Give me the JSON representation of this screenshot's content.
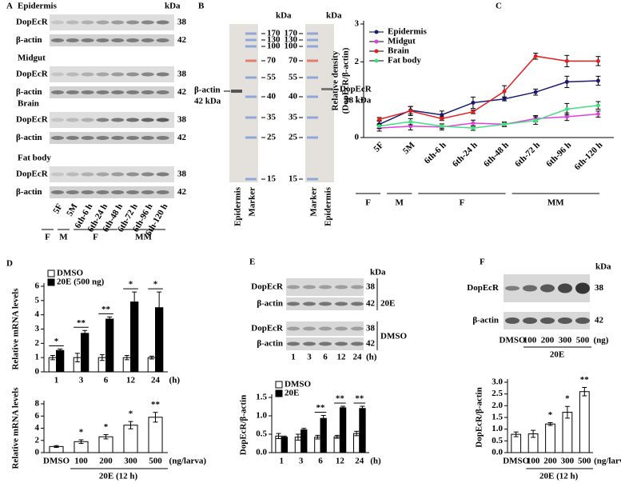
{
  "figure": {
    "panels": [
      "A",
      "B",
      "C",
      "D",
      "E",
      "F"
    ],
    "A": {
      "tissues": [
        "Epidermis",
        "Midgut",
        "Brain",
        "Fat body"
      ],
      "rows": [
        "DopEcR",
        "β-actin"
      ],
      "sizes": [
        38,
        42
      ],
      "unit": "kDa",
      "lanes": [
        "5F",
        "5M",
        "6th-6 h",
        "6th-24 h",
        "6th-48 h",
        "6th-72 h",
        "6th-96 h",
        "6th-120 h"
      ],
      "groups": [
        "F",
        "M",
        "F",
        "MM"
      ]
    },
    "B": {
      "unit": "kDa",
      "markers": [
        170,
        130,
        100,
        70,
        55,
        40,
        35,
        25,
        15
      ],
      "left_label": [
        "β-actin",
        "42 kDa"
      ],
      "right_label": [
        "DopEcR",
        "38 kDa"
      ],
      "lanes": [
        "Epidermis",
        "Marker",
        "Marker",
        "Epidermis"
      ]
    },
    "E": {
      "rows": [
        "DopEcR",
        "β-actin"
      ],
      "sizes": [
        38,
        42
      ],
      "unit": "kDa",
      "treatments": [
        "20E",
        "DMSO"
      ],
      "lanes": [
        1,
        3,
        6,
        12,
        24
      ],
      "lane_unit": "(h)"
    },
    "F": {
      "rows": [
        "DopEcR",
        "β-actin"
      ],
      "sizes": [
        38,
        42
      ],
      "unit": "kDa",
      "lanes": [
        "DMSO",
        100,
        200,
        300,
        500
      ],
      "lane_unit": "(ng)",
      "group": "20E"
    }
  },
  "chart_data": [
    {
      "type": "line",
      "ylabel": [
        "Relative density",
        "(DopEcR/β-actin)"
      ],
      "categories": [
        "5F",
        "5M",
        "6th-6 h",
        "6th-24 h",
        "6th-48 h",
        "6th-72 h",
        "6th-96 h",
        "6th-120 h"
      ],
      "groups": [
        "F",
        "M",
        "F",
        "MM"
      ],
      "ylim": [
        0,
        3
      ],
      "yticks": [
        0,
        1,
        2,
        3
      ],
      "series": [
        {
          "name": "Epidermis",
          "color": "#1a1a70",
          "values": [
            0.35,
            0.72,
            0.6,
            0.92,
            1.02,
            1.2,
            1.47,
            1.5
          ],
          "errors": [
            0.1,
            0.1,
            0.1,
            0.15,
            0.05,
            0.08,
            0.15,
            0.12
          ]
        },
        {
          "name": "Midgut",
          "color": "#e040e0",
          "values": [
            0.25,
            0.3,
            0.28,
            0.38,
            0.35,
            0.5,
            0.55,
            0.62
          ],
          "errors": [
            0.08,
            0.1,
            0.08,
            0.08,
            0.05,
            0.08,
            0.1,
            0.08
          ]
        },
        {
          "name": "Brain",
          "color": "#e02020",
          "values": [
            0.48,
            0.7,
            0.5,
            0.68,
            1.22,
            2.15,
            2.02,
            2.02
          ],
          "errors": [
            0.05,
            0.12,
            0.05,
            0.05,
            0.15,
            0.08,
            0.15,
            0.12
          ]
        },
        {
          "name": "Fat body",
          "color": "#40e080",
          "values": [
            0.3,
            0.42,
            0.3,
            0.25,
            0.35,
            0.45,
            0.75,
            0.85
          ],
          "errors": [
            0.06,
            0.08,
            0.06,
            0.06,
            0.06,
            0.1,
            0.15,
            0.1
          ]
        }
      ]
    },
    {
      "type": "bar",
      "ylabel": "Relative mRNA levels",
      "categories": [
        "1",
        "3",
        "6",
        "12",
        "24"
      ],
      "x_unit": "(h)",
      "ylim": [
        0,
        6
      ],
      "yticks": [
        0,
        1,
        2,
        3,
        4,
        5,
        6
      ],
      "series": [
        {
          "name": "DMSO",
          "color": "#ffffff",
          "values": [
            1,
            1,
            1,
            1,
            1
          ],
          "errors": [
            0.15,
            0.3,
            0.2,
            0.15,
            0.1
          ]
        },
        {
          "name": "20E (500 ng)",
          "color": "#000000",
          "values": [
            1.5,
            2.7,
            3.7,
            4.9,
            4.5
          ],
          "errors": [
            0.1,
            0.2,
            0.15,
            0.7,
            1.1
          ]
        }
      ],
      "significance": [
        "*",
        "**",
        "**",
        "*",
        "*"
      ]
    },
    {
      "type": "bar",
      "ylabel": "Relative mRNA levels",
      "categories": [
        "DMSO",
        "100",
        "200",
        "300",
        "500"
      ],
      "x_unit": "(ng/larva)",
      "group": "20E (12 h)",
      "ylim": [
        0,
        8
      ],
      "yticks": [
        0,
        2,
        4,
        6,
        8
      ],
      "series": [
        {
          "color": "#ffffff",
          "values": [
            1,
            1.8,
            2.6,
            4.5,
            5.8
          ],
          "errors": [
            0.15,
            0.3,
            0.35,
            0.6,
            0.8
          ]
        }
      ],
      "significance": [
        null,
        "*",
        "*",
        "*",
        "**"
      ]
    },
    {
      "type": "bar",
      "ylabel": "DopEcR/β-actin",
      "categories": [
        "1",
        "3",
        "6",
        "12",
        "24"
      ],
      "x_unit": "(h)",
      "ylim": [
        0,
        1.5
      ],
      "yticks": [
        {
          "value": 0,
          "label": "0.0"
        },
        0.5,
        {
          "value": 1,
          "label": "1.0"
        },
        1.5
      ],
      "series": [
        {
          "name": "DMSO",
          "color": "#ffffff",
          "values": [
            0.45,
            0.42,
            0.42,
            0.43,
            0.52
          ],
          "errors": [
            0.07,
            0.08,
            0.05,
            0.04,
            0.06
          ]
        },
        {
          "name": "20E",
          "color": "#000000",
          "values": [
            0.42,
            0.62,
            0.93,
            1.22,
            1.2
          ],
          "errors": [
            0.03,
            0.04,
            0.08,
            0.04,
            0.06
          ]
        }
      ],
      "significance": [
        null,
        null,
        "**",
        "**",
        "**"
      ]
    },
    {
      "type": "bar",
      "ylabel": "DopEcR/β-actin",
      "categories": [
        "DMSO",
        "100",
        "200",
        "300",
        "500"
      ],
      "x_unit": "(ng/larva)",
      "group": "20E (12 h)",
      "ylim": [
        0,
        3
      ],
      "yticks": [
        {
          "value": 0,
          "label": "0.0"
        },
        0.5,
        {
          "value": 1,
          "label": "1.0"
        },
        1.5,
        {
          "value": 2,
          "label": "2.0"
        },
        2.5,
        {
          "value": 3,
          "label": "3.0"
        }
      ],
      "series": [
        {
          "color": "#ffffff",
          "values": [
            0.78,
            0.8,
            1.22,
            1.72,
            2.6
          ],
          "errors": [
            0.1,
            0.15,
            0.06,
            0.25,
            0.18
          ]
        }
      ],
      "significance": [
        null,
        null,
        "*",
        "*",
        "**"
      ]
    }
  ]
}
